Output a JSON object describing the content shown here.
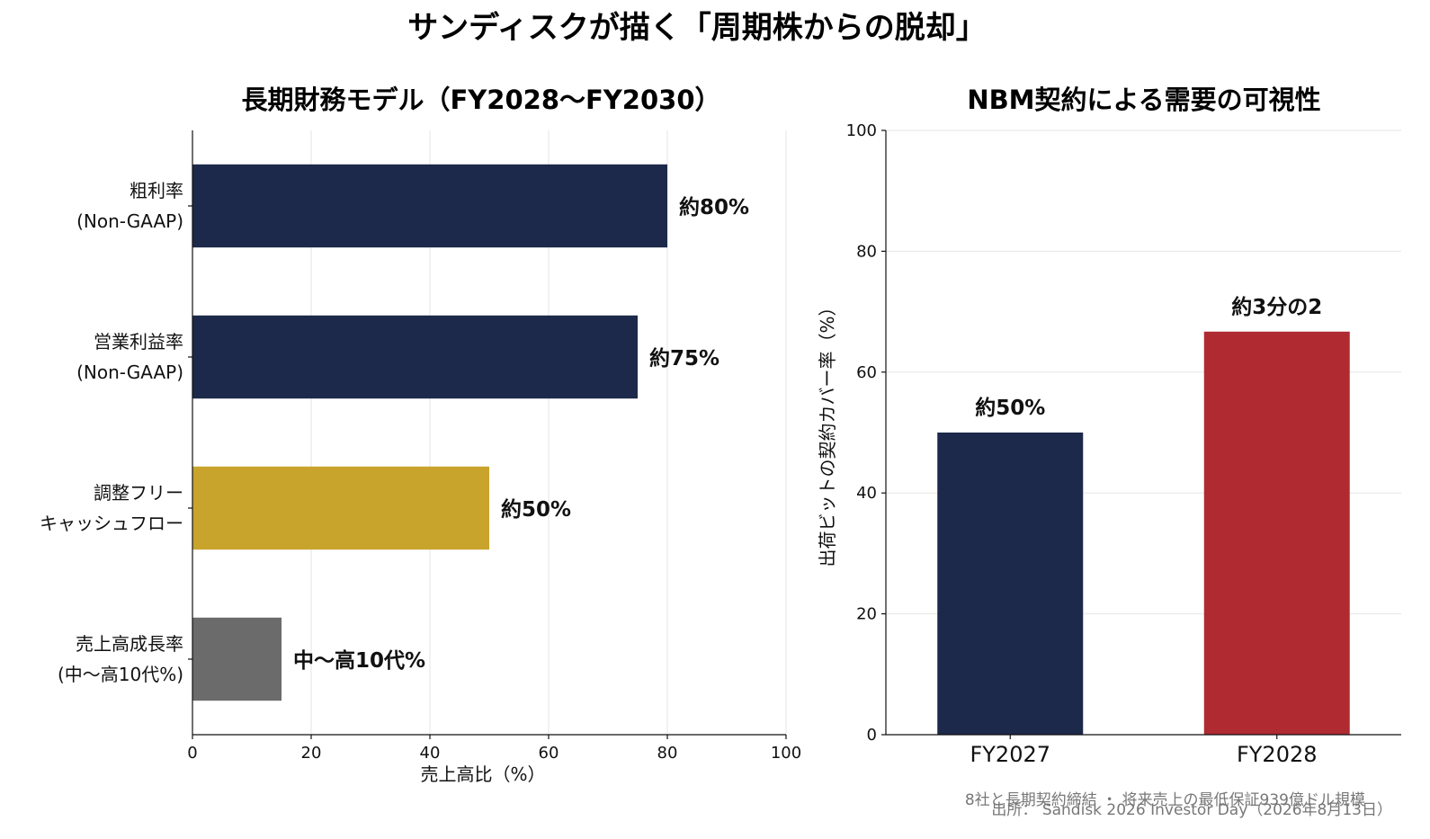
{
  "suptitle": "サンディスクが描く「周期株からの脱却」",
  "chart_data": [
    {
      "type": "bar",
      "orientation": "horizontal",
      "title": "長期財務モデル（FY2028〜FY2030）",
      "xlabel": "売上高比（%）",
      "xlim": [
        0,
        100
      ],
      "xticks": [
        "0",
        "20",
        "40",
        "60",
        "80",
        "100"
      ],
      "grid": true,
      "categories": [
        [
          "粗利率",
          "(Non-GAAP)"
        ],
        [
          "営業利益率",
          "(Non-GAAP)"
        ],
        [
          "調整フリー",
          "キャッシュフロー"
        ],
        [
          "売上高成長率",
          "(中〜高10代%)"
        ]
      ],
      "values": [
        80,
        75,
        50,
        15
      ],
      "value_labels": [
        "約80%",
        "約75%",
        "約50%",
        "中〜高10代%"
      ],
      "colors": [
        "#1c294a",
        "#1c294a",
        "#c9a42c",
        "#6b6b6b"
      ]
    },
    {
      "type": "bar",
      "title": "NBM契約による需要の可視性",
      "ylabel": "出荷ビットの契約カバー率（%）",
      "ylim": [
        0,
        100
      ],
      "yticks": [
        "0",
        "20",
        "40",
        "60",
        "80",
        "100"
      ],
      "grid": true,
      "categories": [
        "FY2027",
        "FY2028"
      ],
      "values": [
        50,
        66.7
      ],
      "value_labels": [
        "約50%",
        "約3分の2"
      ],
      "colors": [
        "#1c294a",
        "#b02a32"
      ]
    }
  ],
  "notes": {
    "agreements": "8社と長期契約締結 ・ 将来売上の最低保証939億ドル規模",
    "source": "出所： Sandisk 2026 Investor Day（2026年8月13日）"
  }
}
